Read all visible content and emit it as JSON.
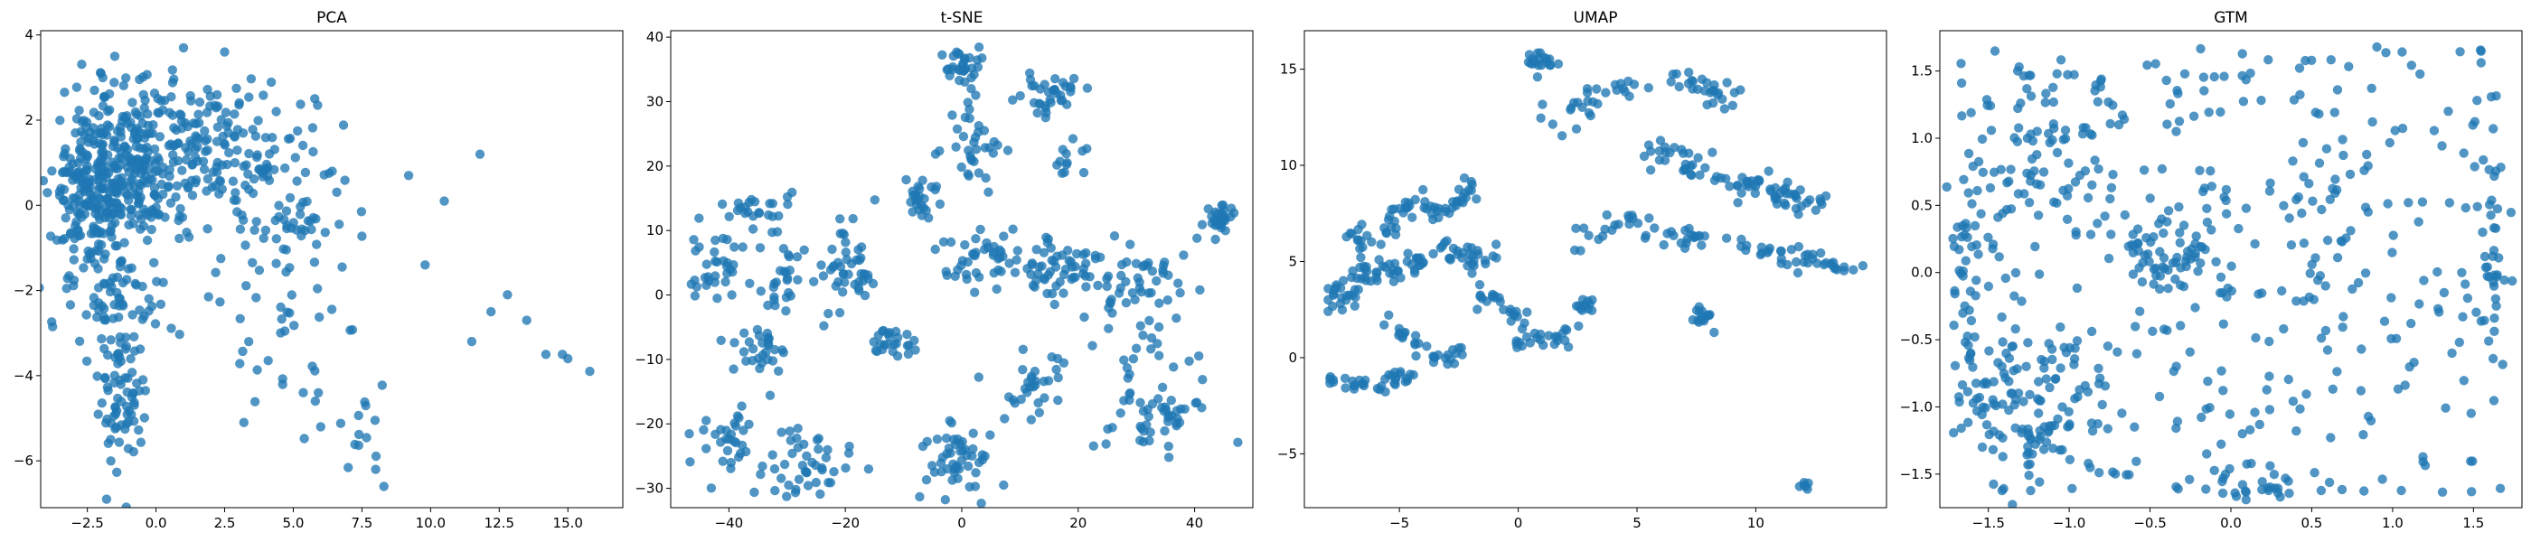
{
  "colors": {
    "marker": "#1f77b4",
    "frame": "#000000",
    "background": "#ffffff"
  },
  "chart_data": [
    {
      "type": "scatter",
      "title": "PCA",
      "xlabel": "",
      "ylabel": "",
      "xlim": [
        -4.2,
        17.0
      ],
      "ylim": [
        -7.1,
        4.1
      ],
      "xticks": [
        -2.5,
        0.0,
        2.5,
        5.0,
        7.5,
        10.0,
        12.5,
        15.0
      ],
      "xtick_labels": [
        "−2.5",
        "0.0",
        "2.5",
        "5.0",
        "7.5",
        "10.0",
        "12.5",
        "15.0"
      ],
      "yticks": [
        -6,
        -4,
        -2,
        0,
        2,
        4
      ],
      "ytick_labels": [
        "−6",
        "−4",
        "−2",
        "0",
        "2",
        "4"
      ],
      "grid": false,
      "clusters": [
        {
          "cx": -2.3,
          "cy": 0.3,
          "sx": 0.75,
          "sy": 1.1,
          "n": 260
        },
        {
          "cx": -0.5,
          "cy": 1.0,
          "sx": 0.9,
          "sy": 0.9,
          "n": 180
        },
        {
          "cx": 1.8,
          "cy": 1.4,
          "sx": 1.1,
          "sy": 0.9,
          "n": 110
        },
        {
          "cx": 4.5,
          "cy": 0.3,
          "sx": 1.4,
          "sy": 1.1,
          "n": 90
        },
        {
          "cx": -1.2,
          "cy": -4.4,
          "sx": 0.45,
          "sy": 0.8,
          "n": 70
        },
        {
          "cx": -1.0,
          "cy": -2.2,
          "sx": 0.8,
          "sy": 0.7,
          "n": 45
        },
        {
          "cx": 7.5,
          "cy": -5.2,
          "sx": 0.7,
          "sy": 0.5,
          "n": 12
        },
        {
          "cx": 5.0,
          "cy": -2.5,
          "sx": 1.3,
          "sy": 1.2,
          "n": 40
        }
      ],
      "points": [
        {
          "x": 11.5,
          "y": -3.2
        },
        {
          "x": 11.8,
          "y": 1.2
        },
        {
          "x": 12.2,
          "y": -2.5
        },
        {
          "x": 12.8,
          "y": -2.1
        },
        {
          "x": 13.5,
          "y": -2.7
        },
        {
          "x": 14.2,
          "y": -3.5
        },
        {
          "x": 14.8,
          "y": -3.5
        },
        {
          "x": 15.0,
          "y": -3.6
        },
        {
          "x": 15.8,
          "y": -3.9
        },
        {
          "x": 9.8,
          "y": -1.4
        },
        {
          "x": 10.5,
          "y": 0.1
        },
        {
          "x": 9.2,
          "y": 0.7
        },
        {
          "x": 8.3,
          "y": -6.6
        },
        {
          "x": 8.0,
          "y": -6.2
        },
        {
          "x": 1.0,
          "y": 3.7
        },
        {
          "x": 2.5,
          "y": 3.6
        },
        {
          "x": -1.5,
          "y": 3.5
        },
        {
          "x": -1.8,
          "y": -6.9
        },
        {
          "x": 3.2,
          "y": -5.1
        },
        {
          "x": 5.8,
          "y": -4.6
        },
        {
          "x": 6.0,
          "y": -5.2
        }
      ]
    },
    {
      "type": "scatter",
      "title": "t-SNE",
      "xlabel": "",
      "ylabel": "",
      "xlim": [
        -50,
        50
      ],
      "ylim": [
        -33,
        41
      ],
      "xticks": [
        -40,
        -20,
        0,
        20,
        40
      ],
      "xtick_labels": [
        "−40",
        "−20",
        "0",
        "20",
        "40"
      ],
      "yticks": [
        -30,
        -20,
        -10,
        0,
        10,
        20,
        30,
        40
      ],
      "ytick_labels": [
        "−30",
        "−20",
        "−10",
        "0",
        "10",
        "20",
        "30",
        "40"
      ],
      "grid": false,
      "clusters": [
        {
          "cx": 0,
          "cy": 36,
          "sx": 1.5,
          "sy": 1.5,
          "n": 30
        },
        {
          "cx": 16,
          "cy": 31,
          "sx": 2.5,
          "sy": 1.5,
          "n": 35
        },
        {
          "cx": 2,
          "cy": 24,
          "sx": 2.5,
          "sy": 3.5,
          "n": 35
        },
        {
          "cx": 18,
          "cy": 22,
          "sx": 1.5,
          "sy": 2.0,
          "n": 12
        },
        {
          "cx": -42,
          "cy": 4,
          "sx": 3.0,
          "sy": 2.5,
          "n": 35
        },
        {
          "cx": -35,
          "cy": 13,
          "sx": 3.0,
          "sy": 2.0,
          "n": 25
        },
        {
          "cx": -30,
          "cy": 2,
          "sx": 2.5,
          "sy": 2.5,
          "n": 25
        },
        {
          "cx": -35,
          "cy": -8,
          "sx": 2.5,
          "sy": 2.5,
          "n": 30
        },
        {
          "cx": -20,
          "cy": 5,
          "sx": 2.5,
          "sy": 4.0,
          "n": 45
        },
        {
          "cx": -12,
          "cy": -7,
          "sx": 2.0,
          "sy": 1.5,
          "n": 25
        },
        {
          "cx": -7,
          "cy": 15,
          "sx": 1.5,
          "sy": 2.5,
          "n": 25
        },
        {
          "cx": -40,
          "cy": -23,
          "sx": 2.5,
          "sy": 2.5,
          "n": 30
        },
        {
          "cx": -27,
          "cy": -26,
          "sx": 3.5,
          "sy": 3.0,
          "n": 45
        },
        {
          "cx": 0,
          "cy": -26,
          "sx": 3.5,
          "sy": 2.5,
          "n": 50
        },
        {
          "cx": 3,
          "cy": 6,
          "sx": 4.0,
          "sy": 2.5,
          "n": 40
        },
        {
          "cx": 17,
          "cy": 4,
          "sx": 4.0,
          "sy": 3.0,
          "n": 55
        },
        {
          "cx": 30,
          "cy": 0,
          "sx": 4.0,
          "sy": 5.0,
          "n": 60
        },
        {
          "cx": 33,
          "cy": -18,
          "sx": 4.5,
          "sy": 3.5,
          "n": 55
        },
        {
          "cx": 13,
          "cy": -13,
          "sx": 3.0,
          "sy": 3.0,
          "n": 30
        },
        {
          "cx": 44,
          "cy": 12,
          "sx": 1.2,
          "sy": 1.2,
          "n": 30
        }
      ],
      "points": []
    },
    {
      "type": "scatter",
      "title": "UMAP",
      "xlabel": "",
      "ylabel": "",
      "xlim": [
        -9,
        15.5
      ],
      "ylim": [
        -7.8,
        17
      ],
      "xticks": [
        -5,
        0,
        5,
        10
      ],
      "xtick_labels": [
        "−5",
        "0",
        "5",
        "10"
      ],
      "yticks": [
        -5,
        0,
        5,
        10,
        15
      ],
      "ytick_labels": [
        "−5",
        "0",
        "5",
        "10",
        "15"
      ],
      "grid": false,
      "paths": [
        {
          "pts": [
            [
              -8,
              -1.2
            ],
            [
              -6,
              -1.5
            ],
            [
              -4.5,
              -1
            ]
          ],
          "sd": 0.25,
          "n": 35
        },
        {
          "pts": [
            [
              -8,
              3.5
            ],
            [
              -7,
              3
            ],
            [
              -6.5,
              4.5
            ],
            [
              -5,
              4.5
            ],
            [
              -3.5,
              5.5
            ],
            [
              -2,
              5.5
            ],
            [
              -1,
              5
            ]
          ],
          "sd": 0.35,
          "n": 95
        },
        {
          "pts": [
            [
              -7.5,
              6.5
            ],
            [
              -6,
              6
            ],
            [
              -5,
              7.5
            ],
            [
              -4,
              8
            ],
            [
              -3,
              7
            ]
          ],
          "sd": 0.3,
          "n": 45
        },
        {
          "pts": [
            [
              -3,
              7.5
            ],
            [
              -2,
              9
            ]
          ],
          "sd": 0.25,
          "n": 20
        },
        {
          "pts": [
            [
              -5.5,
              2
            ],
            [
              -4.5,
              1
            ],
            [
              -4,
              0.2
            ],
            [
              -3,
              0
            ],
            [
              -2.5,
              0.5
            ]
          ],
          "sd": 0.25,
          "n": 30
        },
        {
          "pts": [
            [
              -1.5,
              4
            ],
            [
              -1,
              3
            ],
            [
              0,
              2
            ],
            [
              0,
              0.5
            ]
          ],
          "sd": 0.25,
          "n": 28
        },
        {
          "pts": [
            [
              0.5,
              1
            ],
            [
              2,
              1
            ],
            [
              2.5,
              2.5
            ],
            [
              3,
              3
            ]
          ],
          "sd": 0.25,
          "n": 30
        },
        {
          "pts": [
            [
              0.5,
              15.5
            ],
            [
              1.5,
              15.5
            ]
          ],
          "sd": 0.25,
          "n": 20
        },
        {
          "pts": [
            [
              1,
              12.5
            ],
            [
              3,
              13
            ],
            [
              4,
              14
            ],
            [
              6,
              14.5
            ],
            [
              8,
              14
            ],
            [
              9,
              13
            ]
          ],
          "sd": 0.4,
          "n": 55
        },
        {
          "pts": [
            [
              5,
              11
            ],
            [
              7,
              10
            ],
            [
              9,
              9
            ],
            [
              11,
              8.5
            ],
            [
              12.5,
              8
            ]
          ],
          "sd": 0.45,
          "n": 80
        },
        {
          "pts": [
            [
              2.5,
              6
            ],
            [
              4,
              7
            ],
            [
              6,
              6.5
            ],
            [
              8,
              6
            ]
          ],
          "sd": 0.3,
          "n": 40
        },
        {
          "pts": [
            [
              9,
              6
            ],
            [
              11,
              5.5
            ],
            [
              13,
              5
            ],
            [
              14,
              4.5
            ]
          ],
          "sd": 0.25,
          "n": 40
        },
        {
          "pts": [
            [
              7.5,
              2.5
            ],
            [
              8,
              2
            ]
          ],
          "sd": 0.25,
          "n": 15
        },
        {
          "pts": [
            [
              12,
              -6.7
            ],
            [
              12.2,
              -6.6
            ]
          ],
          "sd": 0.1,
          "n": 6
        }
      ],
      "points": []
    },
    {
      "type": "scatter",
      "title": "GTM",
      "xlabel": "",
      "ylabel": "",
      "xlim": [
        -1.8,
        1.8
      ],
      "ylim": [
        -1.75,
        1.8
      ],
      "xticks": [
        -1.5,
        -1.0,
        -0.5,
        0.0,
        0.5,
        1.0,
        1.5
      ],
      "xtick_labels": [
        "−1.5",
        "−1.0",
        "−0.5",
        "0.0",
        "0.5",
        "1.0",
        "1.5"
      ],
      "yticks": [
        -1.5,
        -1.0,
        -0.5,
        0.0,
        0.5,
        1.0,
        1.5
      ],
      "ytick_labels": [
        "−1.5",
        "−1.0",
        "−0.5",
        "0.0",
        "0.5",
        "1.0",
        "1.5"
      ],
      "grid": false,
      "clusters": [
        {
          "cx": -1.3,
          "cy": -1.0,
          "sx": 0.2,
          "sy": 0.3,
          "n": 90
        },
        {
          "cx": -0.4,
          "cy": 0.1,
          "sx": 0.15,
          "sy": 0.2,
          "n": 50
        },
        {
          "cx": -1.65,
          "cy": 0.0,
          "sx": 0.04,
          "sy": 0.4,
          "n": 30
        },
        {
          "cx": 1.65,
          "cy": 0.0,
          "sx": 0.05,
          "sy": 0.4,
          "n": 25
        },
        {
          "cx": -1.2,
          "cy": 0.9,
          "sx": 0.3,
          "sy": 0.4,
          "n": 60
        },
        {
          "cx": 0.2,
          "cy": -1.6,
          "sx": 0.15,
          "sy": 0.04,
          "n": 20
        }
      ],
      "uniform": {
        "n": 420
      },
      "points": []
    }
  ]
}
